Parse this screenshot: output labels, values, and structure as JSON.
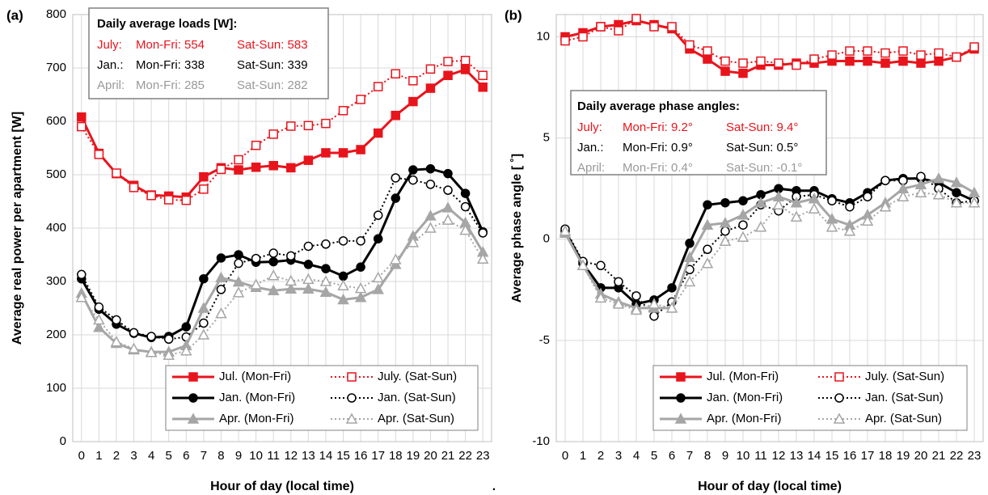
{
  "footnote": ".",
  "chart_data": [
    {
      "type": "line",
      "panel_label": "(a)",
      "ylabel": "Average real power per apartment [W]",
      "xlabel": "Hour of day (local time)",
      "x": [
        0,
        1,
        2,
        3,
        4,
        5,
        6,
        7,
        8,
        9,
        10,
        11,
        12,
        13,
        14,
        15,
        16,
        17,
        18,
        19,
        20,
        21,
        22,
        23
      ],
      "xlim": [
        -0.5,
        23.5
      ],
      "xticks": [
        0,
        1,
        2,
        3,
        4,
        5,
        6,
        7,
        8,
        9,
        10,
        11,
        12,
        13,
        14,
        15,
        16,
        17,
        18,
        19,
        20,
        21,
        22,
        23
      ],
      "ylim": [
        0,
        800
      ],
      "yticks": [
        0,
        100,
        200,
        300,
        400,
        500,
        600,
        700,
        800
      ],
      "grid": true,
      "legend": "lower right",
      "annotation": {
        "title": "Daily average loads [W]:",
        "rows": [
          {
            "label": "July:",
            "weekday": "Mon-Fri: 554",
            "weekend": "Sat-Sun: 583",
            "color": "#e8141c"
          },
          {
            "label": "Jan.:",
            "weekday": "Mon-Fri: 338",
            "weekend": "Sat-Sun: 339",
            "color": "#000000"
          },
          {
            "label": "April:",
            "weekday": "Mon-Fri: 285",
            "weekend": "Sat-Sun: 282",
            "color": "#999999"
          }
        ]
      },
      "series": [
        {
          "name": "Jul. (Mon-Fri)",
          "color": "#e8141c",
          "marker": "square",
          "filled": true,
          "dotted": false,
          "values": [
            608,
            540,
            502,
            480,
            462,
            460,
            458,
            496,
            513,
            509,
            514,
            517,
            513,
            527,
            541,
            541,
            547,
            578,
            611,
            637,
            662,
            686,
            697,
            664
          ]
        },
        {
          "name": "July. (Sat-Sun)",
          "color": "#e8141c",
          "marker": "square",
          "filled": false,
          "dotted": true,
          "values": [
            590,
            538,
            503,
            476,
            461,
            453,
            452,
            473,
            510,
            528,
            555,
            576,
            591,
            592,
            596,
            620,
            641,
            665,
            689,
            676,
            698,
            712,
            714,
            686
          ]
        },
        {
          "name": "Jan. (Mon-Fri)",
          "color": "#000000",
          "marker": "circle",
          "filled": true,
          "dotted": false,
          "values": [
            305,
            248,
            220,
            203,
            195,
            197,
            215,
            305,
            344,
            350,
            336,
            337,
            340,
            332,
            324,
            310,
            327,
            380,
            456,
            509,
            511,
            502,
            465,
            393
          ]
        },
        {
          "name": "Jan. (Sat-Sun)",
          "color": "#000000",
          "marker": "circle",
          "filled": false,
          "dotted": true,
          "values": [
            313,
            252,
            228,
            204,
            197,
            192,
            196,
            222,
            285,
            334,
            343,
            353,
            348,
            366,
            370,
            376,
            376,
            424,
            494,
            490,
            482,
            471,
            440,
            391
          ]
        },
        {
          "name": "Apr. (Mon-Fri)",
          "color": "#a6a6a6",
          "marker": "triangle",
          "filled": true,
          "dotted": false,
          "values": [
            278,
            214,
            184,
            172,
            168,
            168,
            180,
            250,
            307,
            299,
            289,
            283,
            286,
            286,
            280,
            266,
            270,
            285,
            332,
            385,
            423,
            438,
            410,
            355
          ]
        },
        {
          "name": "Apr. (Sat-Sun)",
          "color": "#a6a6a6",
          "marker": "triangle",
          "filled": false,
          "dotted": true,
          "values": [
            270,
            228,
            187,
            174,
            167,
            162,
            170,
            200,
            240,
            279,
            294,
            311,
            301,
            304,
            300,
            292,
            287,
            307,
            341,
            373,
            400,
            415,
            396,
            342
          ]
        }
      ]
    },
    {
      "type": "line",
      "panel_label": "(b)",
      "ylabel": "Average phase angle [ ˚]",
      "xlabel": "Hour of day (local time)",
      "x": [
        0,
        1,
        2,
        3,
        4,
        5,
        6,
        7,
        8,
        9,
        10,
        11,
        12,
        13,
        14,
        15,
        16,
        17,
        18,
        19,
        20,
        21,
        22,
        23
      ],
      "xlim": [
        -0.5,
        23.5
      ],
      "xticks": [
        0,
        1,
        2,
        3,
        4,
        5,
        6,
        7,
        8,
        9,
        10,
        11,
        12,
        13,
        14,
        15,
        16,
        17,
        18,
        19,
        20,
        21,
        22,
        23
      ],
      "ylim": [
        -10,
        11.1
      ],
      "yticks": [
        -10,
        -5,
        0,
        5,
        10
      ],
      "grid": true,
      "legend": "lower right",
      "annotation": {
        "title": "Daily average phase angles:",
        "rows": [
          {
            "label": "July:",
            "weekday": "Mon-Fri: 9.2°",
            "weekend": "Sat-Sun: 9.4°",
            "color": "#e8141c"
          },
          {
            "label": "Jan.:",
            "weekday": "Mon-Fri: 0.9°",
            "weekend": "Sat-Sun: 0.5°",
            "color": "#000000"
          },
          {
            "label": "April:",
            "weekday": "Mon-Fri: 0.4°",
            "weekend": "Sat-Sun: -0.1°",
            "color": "#999999"
          }
        ]
      },
      "series": [
        {
          "name": "Jul. (Mon-Fri)",
          "color": "#e8141c",
          "marker": "square",
          "filled": true,
          "dotted": false,
          "values": [
            10.0,
            10.2,
            10.5,
            10.6,
            10.8,
            10.6,
            10.4,
            9.4,
            8.9,
            8.3,
            8.2,
            8.6,
            8.6,
            8.7,
            8.7,
            8.8,
            8.8,
            8.8,
            8.7,
            8.8,
            8.7,
            8.8,
            9.0,
            9.4
          ]
        },
        {
          "name": "July. (Sat-Sun)",
          "color": "#e8141c",
          "marker": "square",
          "filled": false,
          "dotted": true,
          "values": [
            9.8,
            10.0,
            10.5,
            10.3,
            10.9,
            10.5,
            10.5,
            9.6,
            9.3,
            8.8,
            8.7,
            8.8,
            8.7,
            8.6,
            8.9,
            9.1,
            9.3,
            9.3,
            9.2,
            9.3,
            9.1,
            9.2,
            9.0,
            9.5
          ]
        },
        {
          "name": "Jan. (Mon-Fri)",
          "color": "#000000",
          "marker": "circle",
          "filled": true,
          "dotted": false,
          "values": [
            0.4,
            -1.2,
            -2.4,
            -2.4,
            -3.2,
            -3.0,
            -2.4,
            -0.2,
            1.7,
            1.8,
            1.9,
            2.2,
            2.5,
            2.4,
            2.4,
            2.0,
            1.8,
            2.3,
            2.9,
            3.0,
            3.0,
            2.8,
            2.3,
            1.9
          ]
        },
        {
          "name": "Jan. (Sat-Sun)",
          "color": "#000000",
          "marker": "circle",
          "filled": false,
          "dotted": true,
          "values": [
            0.5,
            -1.1,
            -1.3,
            -2.1,
            -2.8,
            -3.8,
            -3.1,
            -1.5,
            -0.5,
            0.4,
            0.7,
            1.7,
            1.4,
            2.1,
            2.2,
            1.9,
            1.6,
            2.1,
            2.9,
            2.9,
            3.1,
            2.5,
            1.8,
            1.9
          ]
        },
        {
          "name": "Apr. (Mon-Fri)",
          "color": "#a6a6a6",
          "marker": "triangle",
          "filled": true,
          "dotted": false,
          "values": [
            0.3,
            -1.3,
            -2.7,
            -3.1,
            -3.4,
            -3.4,
            -3.4,
            -0.9,
            0.7,
            0.8,
            1.2,
            1.8,
            2.1,
            1.8,
            2.0,
            1.0,
            0.7,
            1.2,
            1.8,
            2.5,
            2.7,
            3.0,
            2.8,
            2.3
          ]
        },
        {
          "name": "Apr. (Sat-Sun)",
          "color": "#a6a6a6",
          "marker": "triangle",
          "filled": false,
          "dotted": true,
          "values": [
            0.4,
            -1.3,
            -2.9,
            -3.2,
            -3.5,
            -3.2,
            -3.4,
            -2.1,
            -1.2,
            -0.1,
            0.1,
            0.6,
            1.7,
            1.1,
            1.5,
            0.6,
            0.4,
            0.9,
            1.6,
            2.1,
            2.3,
            2.2,
            1.8,
            1.8
          ]
        }
      ]
    }
  ]
}
